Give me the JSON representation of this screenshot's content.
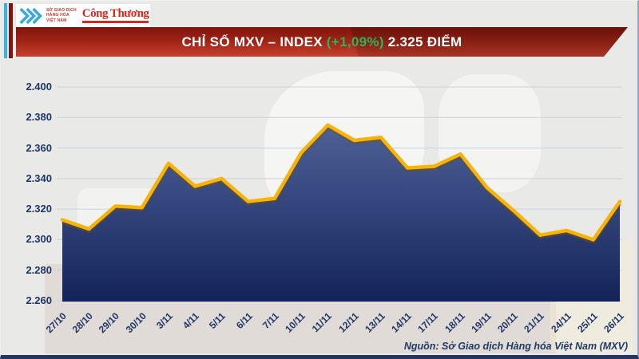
{
  "header": {
    "mxv_logo": {
      "line1": "SỞ GIAO DỊCH",
      "line2": "HÀNG HÓA",
      "line3": "VIỆT NAM"
    },
    "congthuong": {
      "name": "Công Thương"
    }
  },
  "banner": {
    "title_prefix": "CHỈ SỐ MXV – INDEX",
    "change": "(+1,09%)",
    "title_suffix": "2.325 ĐIỂM",
    "change_color": "#2cb35c",
    "bg_top": "#7d150d",
    "bg_bottom": "#c8402e"
  },
  "chart_data": {
    "type": "area",
    "title": "CHỈ SỐ MXV – INDEX (+1,09%) 2.325 ĐIỂM",
    "unit": "điểm",
    "categories": [
      "27/10",
      "28/10",
      "29/10",
      "30/10",
      "3/11",
      "4/11",
      "5/11",
      "6/11",
      "7/11",
      "10/11",
      "11/11",
      "12/11",
      "13/11",
      "14/11",
      "17/11",
      "18/11",
      "19/11",
      "20/11",
      "21/11",
      "24/11",
      "25/11",
      "26/11"
    ],
    "values": [
      2313,
      2307,
      2322,
      2321,
      2350,
      2335,
      2340,
      2325,
      2327,
      2357,
      2375,
      2365,
      2367,
      2347,
      2348,
      2356,
      2334,
      2319,
      2303,
      2306,
      2300,
      2325
    ],
    "ylim": [
      2260,
      2400
    ],
    "ytick_step": 20,
    "ytick_labels": [
      "2.400",
      "2.380",
      "2.360",
      "2.340",
      "2.320",
      "2.300",
      "2.280",
      "2.260"
    ],
    "grid": true,
    "legend": "none",
    "line_color": "#f6b40a",
    "line_shadow_color": "rgba(125,80,0,0.45)",
    "fill_top": "#52669c",
    "fill_bottom": "#13235a",
    "grid_color": "#c7d2df",
    "label_color": "#1e3566"
  },
  "footer": {
    "source": "Nguồn: Sở Giao dịch Hàng hóa Việt Nam (MXV)"
  }
}
